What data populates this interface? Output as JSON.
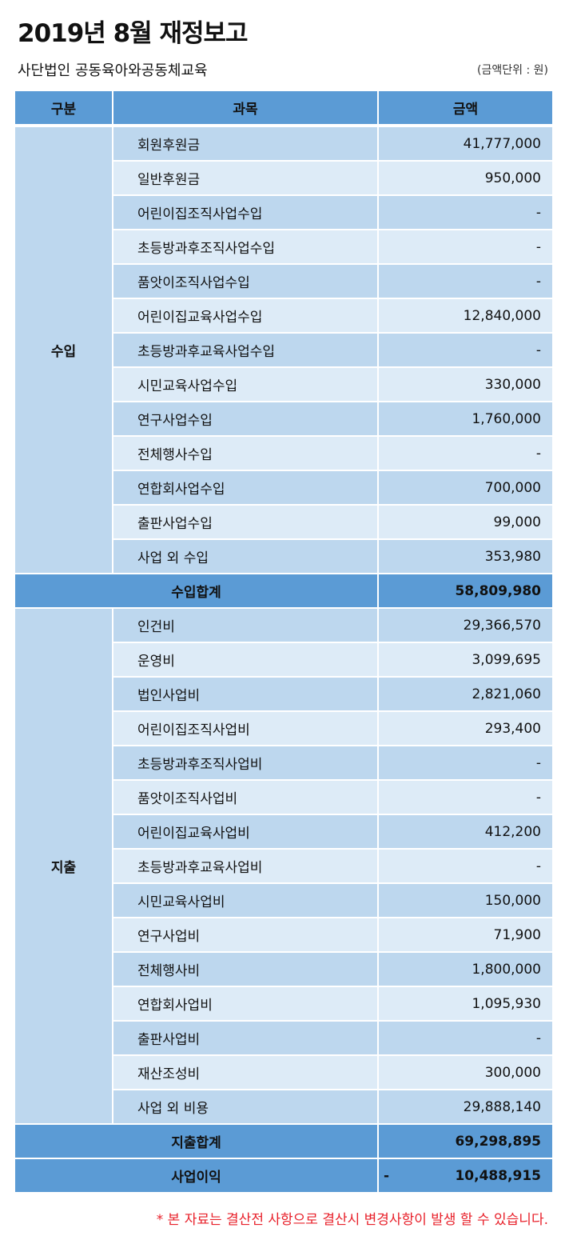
{
  "title": "2019년 8월 재정보고",
  "organization": "사단법인 공동육아와공동체교육",
  "unit_note": "(금액단위 : 원)",
  "headers": {
    "category": "구분",
    "item": "과목",
    "amount": "금액"
  },
  "income": {
    "label": "수입",
    "rows": [
      {
        "item": "회원후원금",
        "amount": "41,777,000"
      },
      {
        "item": "일반후원금",
        "amount": "950,000"
      },
      {
        "item": "어린이집조직사업수입",
        "amount": "-"
      },
      {
        "item": "초등방과후조직사업수입",
        "amount": "-"
      },
      {
        "item": "품앗이조직사업수입",
        "amount": "-"
      },
      {
        "item": "어린이집교육사업수입",
        "amount": "12,840,000"
      },
      {
        "item": "초등방과후교육사업수입",
        "amount": "-"
      },
      {
        "item": "시민교육사업수입",
        "amount": "330,000"
      },
      {
        "item": "연구사업수입",
        "amount": "1,760,000"
      },
      {
        "item": "전체행사수입",
        "amount": "-"
      },
      {
        "item": "연합회사업수입",
        "amount": "700,000"
      },
      {
        "item": "출판사업수입",
        "amount": "99,000"
      },
      {
        "item": "사업 외 수입",
        "amount": "353,980"
      }
    ],
    "total_label": "수입합계",
    "total": "58,809,980"
  },
  "expense": {
    "label": "지출",
    "rows": [
      {
        "item": "인건비",
        "amount": "29,366,570"
      },
      {
        "item": "운영비",
        "amount": "3,099,695"
      },
      {
        "item": "법인사업비",
        "amount": "2,821,060"
      },
      {
        "item": "어린이집조직사업비",
        "amount": "293,400"
      },
      {
        "item": "초등방과후조직사업비",
        "amount": "-"
      },
      {
        "item": "품앗이조직사업비",
        "amount": "-"
      },
      {
        "item": "어린이집교육사업비",
        "amount": "412,200"
      },
      {
        "item": "초등방과후교육사업비",
        "amount": "-"
      },
      {
        "item": "시민교육사업비",
        "amount": "150,000"
      },
      {
        "item": "연구사업비",
        "amount": "71,900"
      },
      {
        "item": "전체행사비",
        "amount": "1,800,000"
      },
      {
        "item": "연합회사업비",
        "amount": "1,095,930"
      },
      {
        "item": "출판사업비",
        "amount": "-"
      },
      {
        "item": "재산조성비",
        "amount": "300,000"
      },
      {
        "item": "사업 외 비용",
        "amount": "29,888,140"
      }
    ],
    "total_label": "지출합계",
    "total": "69,298,895"
  },
  "profit": {
    "label": "사업이익",
    "sign": "-",
    "amount": "10,488,915"
  },
  "footnote": "* 본 자료는 결산전 사항으로 결산시 변경사항이 발생 할 수 있습니다.",
  "colors": {
    "header": "#5B9BD5",
    "row_dark": "#BDD7EE",
    "row_light": "#DDEBF7",
    "footnote": "#E8202A"
  }
}
